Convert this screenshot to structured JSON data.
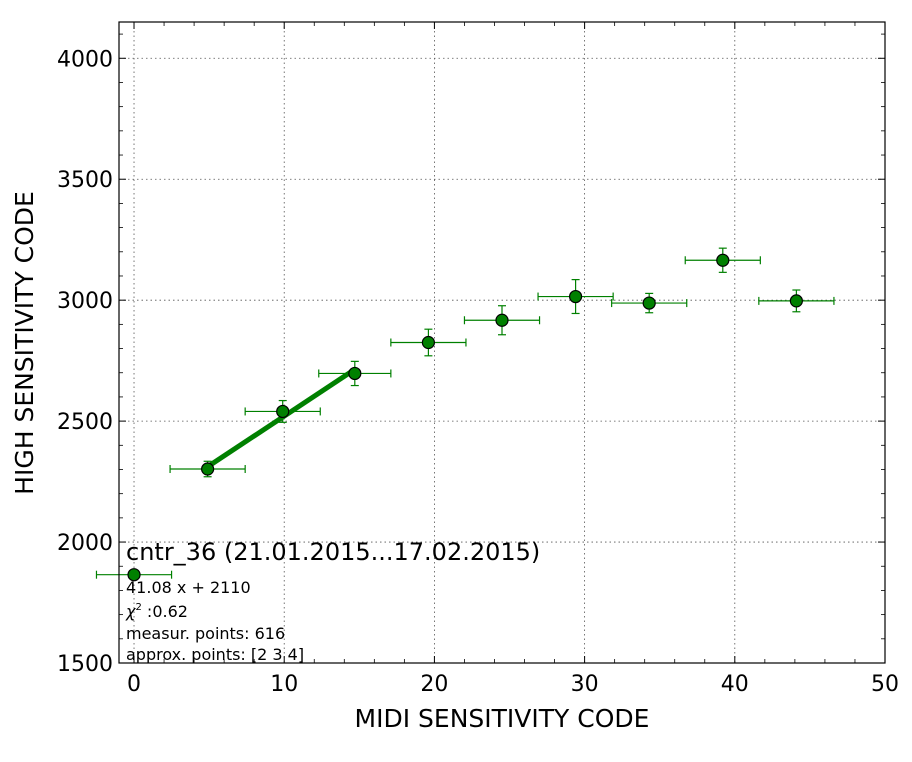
{
  "chart_data": {
    "type": "scatter",
    "title": "cntr_36 (21.01.2015...17.02.2015)",
    "xlabel": "MIDI SENSITIVITY CODE",
    "ylabel": "HIGH SENSITIVITY CODE",
    "xlim": [
      -1,
      50
    ],
    "ylim": [
      1500,
      4150
    ],
    "x_ticks": [
      0,
      10,
      20,
      30,
      40,
      50
    ],
    "y_ticks": [
      1500,
      2000,
      2500,
      3000,
      3500,
      4000
    ],
    "grid": true,
    "colors": {
      "series": "#008000",
      "marker_edge": "#000000",
      "fit_line": "#008000"
    },
    "series": [
      {
        "points": [
          {
            "x": 0.0,
            "y": 1865,
            "xerr": 2.5,
            "yerr": 0
          },
          {
            "x": 4.9,
            "y": 2302,
            "xerr": 2.5,
            "yerr": 32
          },
          {
            "x": 9.9,
            "y": 2540,
            "xerr": 2.5,
            "yerr": 45
          },
          {
            "x": 14.7,
            "y": 2697,
            "xerr": 2.4,
            "yerr": 50
          },
          {
            "x": 19.6,
            "y": 2825,
            "xerr": 2.5,
            "yerr": 55
          },
          {
            "x": 24.5,
            "y": 2917,
            "xerr": 2.5,
            "yerr": 60
          },
          {
            "x": 29.4,
            "y": 3015,
            "xerr": 2.5,
            "yerr": 70
          },
          {
            "x": 34.3,
            "y": 2988,
            "xerr": 2.5,
            "yerr": 40
          },
          {
            "x": 39.2,
            "y": 3165,
            "xerr": 2.5,
            "yerr": 50
          },
          {
            "x": 44.1,
            "y": 2997,
            "xerr": 2.5,
            "yerr": 45
          }
        ]
      }
    ],
    "fit_line": {
      "slope": 41.08,
      "intercept": 2110,
      "x_range": [
        4.9,
        14.7
      ]
    },
    "annotations": [
      "41.08 x + 2110",
      " :0.62",
      "measur. points: 616",
      "approx. points: [2 3 4]"
    ],
    "chi_symbol": "χ",
    "chi_sup": "2"
  }
}
